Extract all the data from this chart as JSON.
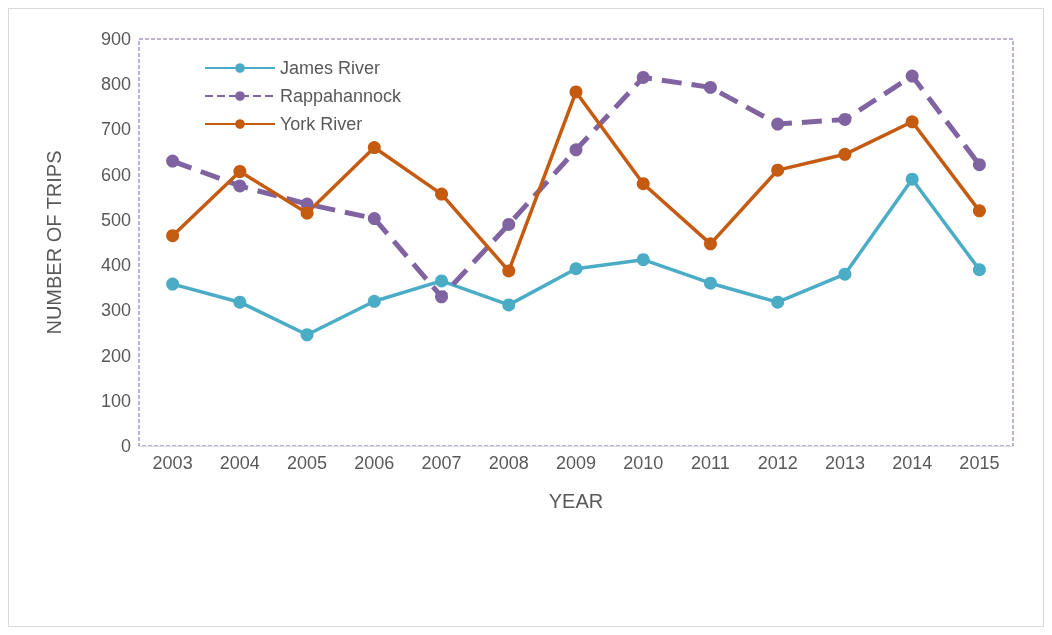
{
  "chart_data": {
    "type": "line",
    "xlabel": "YEAR",
    "ylabel": "NUMBER OF TRIPS",
    "categories": [
      "2003",
      "2004",
      "2005",
      "2006",
      "2007",
      "2008",
      "2009",
      "2010",
      "2011",
      "2012",
      "2013",
      "2014",
      "2015"
    ],
    "series": [
      {
        "name": "James River",
        "color": "#4bacc6",
        "line_style": "solid",
        "values": [
          358,
          318,
          246,
          320,
          365,
          312,
          392,
          412,
          360,
          318,
          380,
          590,
          390
        ]
      },
      {
        "name": "Rappahannock",
        "color": "#8064a2",
        "line_style": "dashed",
        "values": [
          630,
          575,
          535,
          503,
          330,
          490,
          655,
          815,
          793,
          712,
          722,
          818,
          622
        ]
      },
      {
        "name": "York River",
        "color": "#c55a11",
        "line_style": "solid",
        "values": [
          465,
          607,
          515,
          660,
          557,
          387,
          783,
          580,
          447,
          610,
          645,
          717,
          520
        ]
      }
    ],
    "ylim": [
      0,
      900
    ],
    "yticks": [
      0,
      100,
      200,
      300,
      400,
      500,
      600,
      700,
      800,
      900
    ],
    "grid": false,
    "legend": "top left",
    "marker": "circle"
  }
}
